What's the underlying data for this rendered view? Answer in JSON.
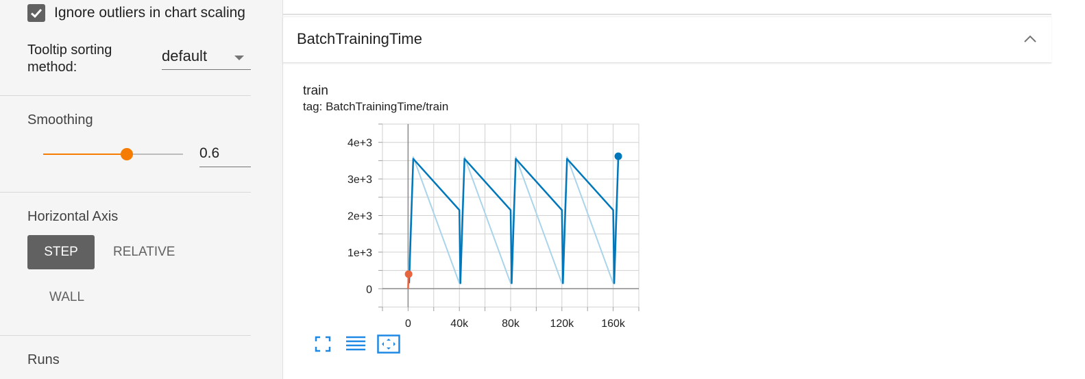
{
  "sidebar": {
    "ignore_outliers": {
      "label": "Ignore outliers in chart scaling",
      "checked": true
    },
    "tooltip_sorting": {
      "label": "Tooltip sorting method:",
      "value": "default"
    },
    "smoothing": {
      "title": "Smoothing",
      "value": "0.6",
      "fraction": 0.6
    },
    "horizontal_axis": {
      "title": "Horizontal Axis",
      "step": "STEP",
      "relative": "RELATIVE",
      "wall": "WALL"
    },
    "runs_title": "Runs"
  },
  "card": {
    "title": "BatchTrainingTime",
    "chart_title": "train",
    "chart_tag": "tag: BatchTrainingTime/train"
  },
  "colors": {
    "accent": "#f57c00",
    "series_main": "#0077bb",
    "series_raw": "#a9d4ea",
    "series_orange": "#e8643f",
    "tool_blue": "#1e88e5"
  },
  "icons": [
    "check-icon",
    "chevron-up-icon",
    "fullscreen-icon",
    "log-scale-icon",
    "fit-domain-icon"
  ],
  "chart_data": {
    "type": "line",
    "title": "train",
    "xlabel": "",
    "ylabel": "",
    "x_ticks": [
      0,
      40000,
      80000,
      120000,
      160000
    ],
    "x_tick_labels": [
      "0",
      "40k",
      "80k",
      "120k",
      "160k"
    ],
    "y_ticks": [
      0,
      1000,
      2000,
      3000,
      4000
    ],
    "y_tick_labels": [
      "0",
      "1e+3",
      "2e+3",
      "3e+3",
      "4e+3"
    ],
    "xlim": [
      -20000,
      180000
    ],
    "ylim": [
      -500,
      4500
    ],
    "grid": true,
    "series": [
      {
        "role": "raw",
        "x": [
          0,
          4000,
          40000,
          44000,
          80000,
          84000,
          120000,
          124000,
          160000,
          164000
        ],
        "y": [
          0,
          3600,
          150,
          3600,
          150,
          3600,
          150,
          3600,
          150,
          3600
        ]
      },
      {
        "role": "smoothed",
        "x": [
          800,
          4000,
          40000,
          40800,
          44000,
          80000,
          80800,
          84000,
          120000,
          120800,
          124000,
          160000,
          160800,
          164000
        ],
        "y": [
          150,
          3550,
          2150,
          150,
          3550,
          2150,
          150,
          3550,
          2150,
          150,
          3550,
          2150,
          150,
          3620
        ]
      },
      {
        "role": "orange-run",
        "x": [
          0,
          400
        ],
        "y": [
          0,
          400
        ]
      }
    ],
    "markers": [
      {
        "x": 400,
        "y": 400,
        "color": "#e8643f"
      },
      {
        "x": 164000,
        "y": 3620,
        "color": "#0077bb"
      }
    ]
  }
}
